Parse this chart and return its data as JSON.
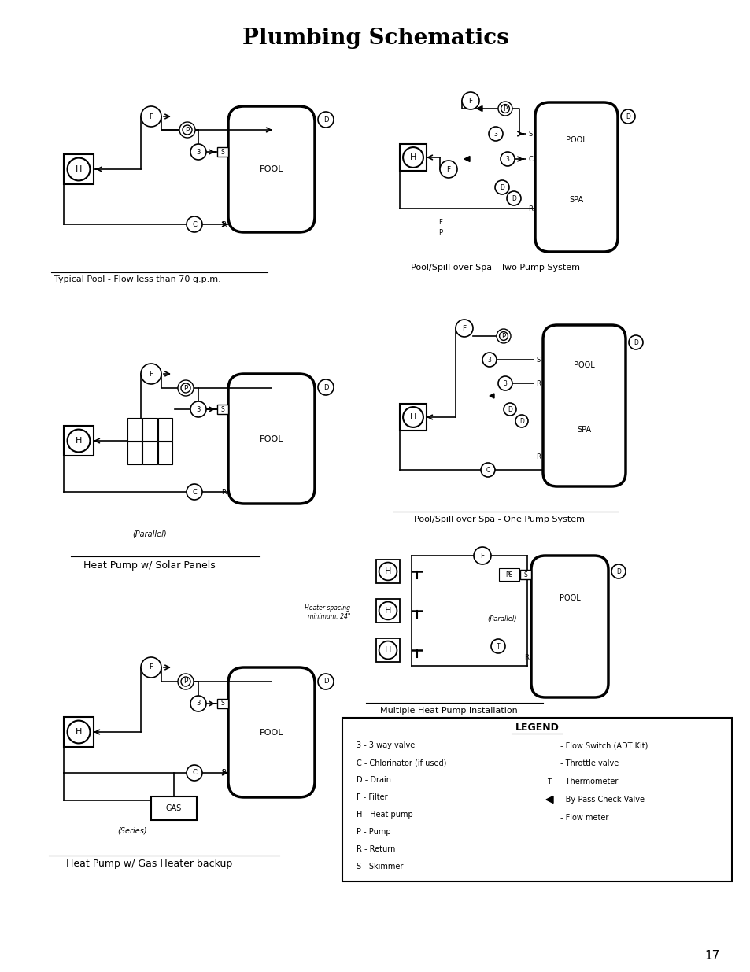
{
  "title": "Plumbing Schematics",
  "page_number": "17",
  "background_color": "#ffffff",
  "line_color": "#000000",
  "legend_left_items": [
    "3 - 3 way valve",
    "C - Chlorinator (if used)",
    "D - Drain",
    "F - Filter",
    "H - Heat pump",
    "P - Pump",
    "R - Return",
    "S - Skimmer"
  ],
  "legend_right_items": [
    "Flow Switch (ADT Kit)",
    "Throttle valve",
    "Thermometer",
    "By-Pass Check Valve",
    "Flow meter"
  ],
  "captions": [
    "Typical Pool - Flow less than 70 g.p.m.",
    "Pool/Spill over Spa - Two Pump System",
    "Heat Pump w/ Solar Panels",
    "Pool/Spill over Spa - One Pump System",
    "Multiple Heat Pump Installation",
    "Heat Pump w/ Gas Heater backup"
  ]
}
